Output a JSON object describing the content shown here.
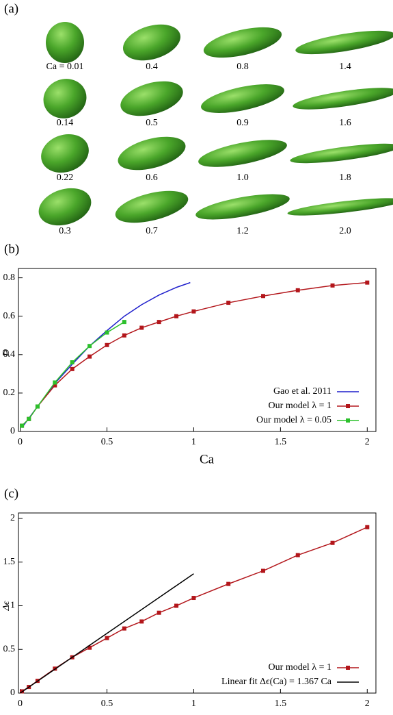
{
  "panel_a": {
    "label": "(a)",
    "captions": [
      [
        "Ca = 0.01",
        "0.4",
        "0.8",
        "1.4"
      ],
      [
        "0.14",
        "0.5",
        "0.9",
        "1.6"
      ],
      [
        "0.22",
        "0.6",
        "1.0",
        "1.8"
      ],
      [
        "0.3",
        "0.7",
        "1.2",
        "2.0"
      ]
    ]
  },
  "chart_data": [
    {
      "type": "line",
      "panel": "(b)",
      "xlabel": "Ca",
      "ylabel": "D",
      "xlim": [
        -0.01,
        2.05
      ],
      "xticks": [
        0,
        0.5,
        1,
        1.5,
        2
      ],
      "ylim": [
        0,
        0.82
      ],
      "yticks": [
        0,
        0.2,
        0.4,
        0.6,
        0.8
      ],
      "legend": "bottom-right",
      "series": [
        {
          "name": "Gao et al. 2011",
          "color": "#1f1fcc",
          "markers": false,
          "x": [
            0.01,
            0.1,
            0.2,
            0.3,
            0.4,
            0.5,
            0.6,
            0.7,
            0.8,
            0.9,
            0.98
          ],
          "values": [
            0.02,
            0.13,
            0.25,
            0.35,
            0.445,
            0.525,
            0.6,
            0.66,
            0.71,
            0.75,
            0.775
          ]
        },
        {
          "name": "Our model λ = 1",
          "color": "#b3161b",
          "markers": true,
          "x": [
            0.01,
            0.05,
            0.1,
            0.2,
            0.3,
            0.4,
            0.5,
            0.6,
            0.7,
            0.8,
            0.9,
            1.0,
            1.2,
            1.4,
            1.6,
            1.8,
            2.0
          ],
          "values": [
            0.03,
            0.065,
            0.13,
            0.24,
            0.325,
            0.39,
            0.45,
            0.5,
            0.54,
            0.57,
            0.6,
            0.625,
            0.67,
            0.705,
            0.735,
            0.76,
            0.775
          ]
        },
        {
          "name": "Our model λ = 0.05",
          "color": "#2cc02c",
          "markers": true,
          "x": [
            0.01,
            0.05,
            0.1,
            0.2,
            0.3,
            0.4,
            0.5,
            0.6
          ],
          "values": [
            0.03,
            0.065,
            0.13,
            0.255,
            0.36,
            0.445,
            0.515,
            0.57
          ]
        }
      ]
    },
    {
      "type": "line",
      "panel": "(c)",
      "xlabel": "Ca",
      "ylabel": "Δϵ",
      "xlim": [
        -0.01,
        2.05
      ],
      "xticks": [
        0,
        0.5,
        1,
        1.5,
        2
      ],
      "ylim": [
        0,
        2
      ],
      "yticks": [
        0,
        0.5,
        1,
        1.5,
        2
      ],
      "legend": "bottom-right",
      "series": [
        {
          "name": "Our model λ = 1",
          "color": "#b3161b",
          "markers": true,
          "x": [
            0.01,
            0.05,
            0.1,
            0.2,
            0.3,
            0.4,
            0.5,
            0.6,
            0.7,
            0.8,
            0.9,
            1.0,
            1.2,
            1.4,
            1.6,
            1.8,
            2.0
          ],
          "values": [
            0.02,
            0.07,
            0.14,
            0.28,
            0.41,
            0.52,
            0.63,
            0.74,
            0.82,
            0.92,
            1.0,
            1.09,
            1.25,
            1.4,
            1.58,
            1.72,
            1.9
          ]
        },
        {
          "name": "Linear fit Δϵ(Ca) = 1.367 Ca",
          "color": "#000000",
          "markers": false,
          "x": [
            0,
            1
          ],
          "values": [
            0,
            1.367
          ]
        }
      ]
    }
  ]
}
